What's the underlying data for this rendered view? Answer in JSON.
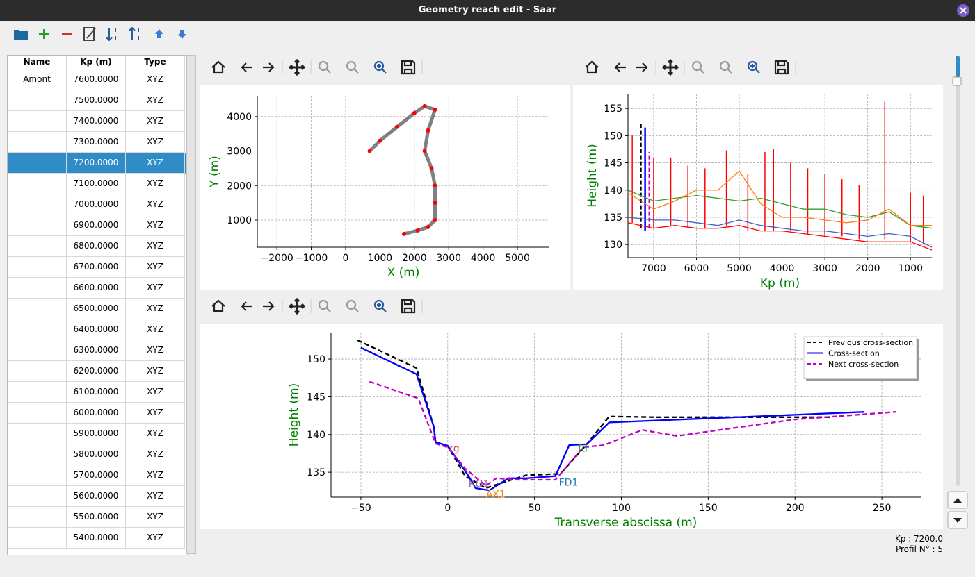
{
  "window": {
    "title": "Geometry reach edit - Saar"
  },
  "table": {
    "headers": [
      "Name",
      "Kp (m)",
      "Type"
    ],
    "selected_row": 4,
    "rows": [
      {
        "name": "Amont",
        "kp": "7600.0000",
        "type": "XYZ"
      },
      {
        "kp": "7500.0000",
        "type": "XYZ"
      },
      {
        "kp": "7400.0000",
        "type": "XYZ"
      },
      {
        "kp": "7300.0000",
        "type": "XYZ"
      },
      {
        "kp": "7200.0000",
        "type": "XYZ"
      },
      {
        "kp": "7100.0000",
        "type": "XYZ"
      },
      {
        "kp": "7000.0000",
        "type": "XYZ"
      },
      {
        "kp": "6900.0000",
        "type": "XYZ"
      },
      {
        "kp": "6800.0000",
        "type": "XYZ"
      },
      {
        "kp": "6700.0000",
        "type": "XYZ"
      },
      {
        "kp": "6600.0000",
        "type": "XYZ"
      },
      {
        "kp": "6500.0000",
        "type": "XYZ"
      },
      {
        "kp": "6400.0000",
        "type": "XYZ"
      },
      {
        "kp": "6300.0000",
        "type": "XYZ"
      },
      {
        "kp": "6200.0000",
        "type": "XYZ"
      },
      {
        "kp": "6100.0000",
        "type": "XYZ"
      },
      {
        "kp": "6000.0000",
        "type": "XYZ"
      },
      {
        "kp": "5900.0000",
        "type": "XYZ"
      },
      {
        "kp": "5800.0000",
        "type": "XYZ"
      },
      {
        "kp": "5700.0000",
        "type": "XYZ"
      },
      {
        "kp": "5600.0000",
        "type": "XYZ"
      },
      {
        "kp": "5500.0000",
        "type": "XYZ"
      },
      {
        "kp": "5400.0000",
        "type": "XYZ"
      }
    ]
  },
  "plan_plot": {
    "type": "line",
    "xlabel": "X (m)",
    "ylabel": "Y (m)",
    "grid": true,
    "xlim": [
      -2570,
      5930
    ],
    "ylim": [
      215,
      4600
    ],
    "xticks": [
      {
        "value": -2000,
        "label": "−2000"
      },
      {
        "value": -1000,
        "label": "−1000"
      },
      0,
      1000,
      2000,
      3000,
      4000,
      5000
    ],
    "yticks": [
      1000,
      2000,
      3000,
      4000
    ],
    "series": [
      {
        "color": "#808080",
        "marker_color": "#ff0000",
        "x": [
          700,
          1000,
          1500,
          2000,
          2300,
          2600,
          2400,
          2300,
          2500,
          2600,
          2600,
          2600,
          2400,
          2100,
          1700
        ],
        "y": [
          3000,
          3300,
          3700,
          4100,
          4300,
          4200,
          3600,
          3000,
          2500,
          2000,
          1500,
          1000,
          800,
          700,
          600
        ]
      }
    ]
  },
  "profile_plot": {
    "type": "line",
    "xlabel": "Kp (m)",
    "ylabel": "Height (m)",
    "grid": true,
    "xlim": [
      7600,
      500
    ],
    "ylim": [
      127.6,
      157.7
    ],
    "xticks": [
      7000,
      6000,
      5000,
      4000,
      3000,
      2000,
      1000
    ],
    "yticks": [
      130,
      135,
      140,
      145,
      150,
      155
    ],
    "series": [
      {
        "color": "#2ca02c",
        "x": [
          7600,
          7000,
          6500,
          6000,
          5500,
          5000,
          4500,
          4000,
          3500,
          3000,
          2500,
          2000,
          1500,
          1000,
          500
        ],
        "y": [
          140,
          138,
          138.5,
          139,
          138.5,
          138,
          138.5,
          137.5,
          136.5,
          136.5,
          135.5,
          135,
          136,
          133.5,
          133
        ]
      },
      {
        "color": "#ff7f0e",
        "x": [
          7600,
          7000,
          6500,
          6000,
          5500,
          5000,
          4500,
          4000,
          3500,
          3000,
          2500,
          2000,
          1500,
          1000,
          500
        ],
        "y": [
          139.5,
          136.5,
          138,
          140,
          140,
          143.5,
          137.5,
          135,
          135,
          134.5,
          134,
          134.5,
          136.5,
          133.5,
          133.5
        ]
      },
      {
        "color": "#4060c8",
        "x": [
          7600,
          7000,
          6500,
          6000,
          5500,
          5000,
          4500,
          4000,
          3500,
          3000,
          2500,
          2000,
          1500,
          1000,
          500
        ],
        "y": [
          135,
          134.5,
          134.5,
          134,
          133.5,
          134.5,
          133.5,
          133,
          132.5,
          132.5,
          132,
          131.5,
          132,
          131.5,
          129.5
        ]
      },
      {
        "color": "#ff0000",
        "x": [
          7600,
          7000,
          6500,
          6000,
          5500,
          5000,
          4500,
          4000,
          3500,
          3000,
          2500,
          2000,
          1500,
          1000,
          500
        ],
        "y": [
          134,
          133,
          133.5,
          133,
          133,
          133.5,
          132.5,
          132.5,
          132,
          131.5,
          131,
          130.5,
          130.5,
          130.5,
          129
        ]
      }
    ],
    "bars": {
      "color": "#ff0000",
      "x": [
        7500,
        7000,
        6600,
        6200,
        5800,
        5300,
        4800,
        4400,
        4200,
        3800,
        3400,
        3000,
        2600,
        2200,
        1600,
        1000,
        700
      ],
      "low": [
        134,
        133,
        133.5,
        133,
        133,
        133.5,
        132.5,
        132.5,
        132.5,
        132.5,
        132,
        131.5,
        131.5,
        131,
        131,
        130.5,
        130
      ],
      "high": [
        150,
        146,
        146,
        144.5,
        144,
        147.3,
        143,
        147,
        147.5,
        145,
        144,
        143,
        142,
        141,
        156.2,
        139.5,
        139
      ]
    },
    "sections": [
      {
        "color": "#000000",
        "dash": true,
        "x": 7300,
        "low": 133,
        "high": 152.5
      },
      {
        "color": "#0000ff",
        "dash": false,
        "x": 7200,
        "low": 132.5,
        "high": 151.5
      },
      {
        "color": "#c000c0",
        "dash": true,
        "x": 7100,
        "low": 133,
        "high": 147
      }
    ]
  },
  "section_plot": {
    "type": "line",
    "xlabel": "Transverse abscissa (m)",
    "ylabel": "Height (m)",
    "grid": true,
    "legend": "upper right",
    "xlim": [
      -67.2,
      272.4
    ],
    "ylim": [
      131.7,
      153.5
    ],
    "xticks": [
      {
        "value": -50,
        "label": "−50"
      },
      0,
      50,
      100,
      150,
      200,
      250
    ],
    "yticks": [
      135,
      140,
      145,
      150
    ],
    "series": [
      {
        "name": "Previous cross-section",
        "color": "#000000",
        "dash": true,
        "x": [
          -52,
          -18,
          -8,
          -7,
          0,
          10,
          22,
          30,
          45,
          65,
          80,
          93,
          120,
          220
        ],
        "y": [
          152.5,
          148.8,
          141,
          139,
          138.5,
          134.5,
          132.9,
          133.5,
          134.6,
          134.8,
          138.7,
          142.4,
          142.3,
          142.3
        ]
      },
      {
        "name": "Cross-section",
        "color": "#0000ff",
        "dash": false,
        "x": [
          -50,
          -18,
          -8,
          -7,
          0,
          12,
          16,
          24,
          35,
          45,
          62,
          70,
          80,
          93,
          240
        ],
        "y": [
          151.5,
          148,
          141,
          139,
          138.5,
          134.5,
          132.9,
          132.6,
          134.2,
          134.2,
          134.5,
          138.6,
          138.7,
          141.6,
          143
        ]
      },
      {
        "name": "Next cross-section",
        "color": "#c000c0",
        "dash": true,
        "x": [
          -45,
          -17,
          -7,
          0,
          10,
          22,
          28,
          40,
          62,
          78,
          90,
          112,
          132,
          200,
          258
        ],
        "y": [
          147,
          144.8,
          138.8,
          138.3,
          135.5,
          133.2,
          134.2,
          134,
          134,
          138.3,
          138.6,
          140.6,
          139.8,
          142,
          143
        ]
      }
    ],
    "annotations": [
      {
        "text": "rg",
        "x": 1,
        "y": 138.2,
        "color": "#d04040"
      },
      {
        "text": "fd",
        "x": 75,
        "y": 138.2,
        "color": "#2ca02c"
      },
      {
        "text": "RG1",
        "x": 12,
        "y": 133.5,
        "color": "#9060a0"
      },
      {
        "text": "AX1",
        "x": 22,
        "y": 132.1,
        "color": "#ff7f0e"
      },
      {
        "text": "FD1",
        "x": 64,
        "y": 133.7,
        "color": "#1f77b4"
      }
    ]
  },
  "status": {
    "kp": "Kp : 7200.0",
    "profile": "Profil N° : 5"
  }
}
